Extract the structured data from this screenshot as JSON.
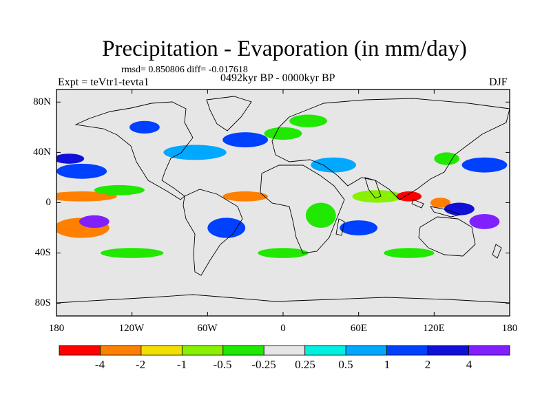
{
  "title": "Precipitation - Evaporation (in mm/day)",
  "stats": "rmsd= 0.850806 diff= -0.017618",
  "experiment": "Expt = teVtr1-tevta1",
  "period": "0492kyr BP - 0000kyr BP",
  "season": "DJF",
  "axes": {
    "lat_ticks": [
      "80N",
      "40N",
      "0",
      "40S",
      "80S"
    ],
    "lon_ticks": [
      "180",
      "120W",
      "60W",
      "0",
      "60E",
      "120E",
      "180"
    ]
  },
  "colorbar": {
    "labels": [
      "-4",
      "-2",
      "-1",
      "-0.5",
      "-0.25",
      "0.25",
      "0.5",
      "1",
      "2",
      "4"
    ],
    "colors": [
      "#ff0000",
      "#ff8000",
      "#f0e000",
      "#88f000",
      "#20e800",
      "#e6e6e6",
      "#00f0e0",
      "#00a8ff",
      "#0040ff",
      "#1010d8",
      "#8020ff"
    ]
  },
  "map": {
    "background": "#e6e6e6",
    "regions": [
      {
        "lon": -160,
        "lat": 5,
        "rx": 28,
        "ry": 4,
        "level": 1
      },
      {
        "lon": -160,
        "lat": -20,
        "rx": 22,
        "ry": 8,
        "level": 1
      },
      {
        "lon": -150,
        "lat": -15,
        "rx": 12,
        "ry": 5,
        "level": 10
      },
      {
        "lon": -160,
        "lat": 25,
        "rx": 20,
        "ry": 6,
        "level": 8
      },
      {
        "lon": -170,
        "lat": 35,
        "rx": 12,
        "ry": 4,
        "level": 9
      },
      {
        "lon": -130,
        "lat": 10,
        "rx": 20,
        "ry": 4,
        "level": 4
      },
      {
        "lon": -30,
        "lat": 5,
        "rx": 18,
        "ry": 4,
        "level": 1
      },
      {
        "lon": -45,
        "lat": -20,
        "rx": 15,
        "ry": 8,
        "level": 8
      },
      {
        "lon": -70,
        "lat": 40,
        "rx": 25,
        "ry": 6,
        "level": 7
      },
      {
        "lon": -30,
        "lat": 50,
        "rx": 18,
        "ry": 6,
        "level": 8
      },
      {
        "lon": 0,
        "lat": 55,
        "rx": 15,
        "ry": 5,
        "level": 4
      },
      {
        "lon": 30,
        "lat": -10,
        "rx": 12,
        "ry": 10,
        "level": 4
      },
      {
        "lon": 60,
        "lat": -20,
        "rx": 15,
        "ry": 6,
        "level": 8
      },
      {
        "lon": 75,
        "lat": 5,
        "rx": 20,
        "ry": 5,
        "level": 3
      },
      {
        "lon": 100,
        "lat": 5,
        "rx": 10,
        "ry": 4,
        "level": 0
      },
      {
        "lon": 125,
        "lat": 0,
        "rx": 8,
        "ry": 4,
        "level": 1
      },
      {
        "lon": 140,
        "lat": -5,
        "rx": 12,
        "ry": 5,
        "level": 9
      },
      {
        "lon": 160,
        "lat": -15,
        "rx": 12,
        "ry": 6,
        "level": 10
      },
      {
        "lon": 160,
        "lat": 30,
        "rx": 18,
        "ry": 6,
        "level": 8
      },
      {
        "lon": 130,
        "lat": 35,
        "rx": 10,
        "ry": 5,
        "level": 4
      },
      {
        "lon": 20,
        "lat": 65,
        "rx": 15,
        "ry": 5,
        "level": 4
      },
      {
        "lon": -110,
        "lat": 60,
        "rx": 12,
        "ry": 5,
        "level": 8
      },
      {
        "lon": 40,
        "lat": 30,
        "rx": 18,
        "ry": 6,
        "level": 7
      },
      {
        "lon": -120,
        "lat": -40,
        "rx": 25,
        "ry": 4,
        "level": 4
      },
      {
        "lon": 0,
        "lat": -40,
        "rx": 20,
        "ry": 4,
        "level": 4
      },
      {
        "lon": 100,
        "lat": -40,
        "rx": 20,
        "ry": 4,
        "level": 4
      }
    ]
  }
}
